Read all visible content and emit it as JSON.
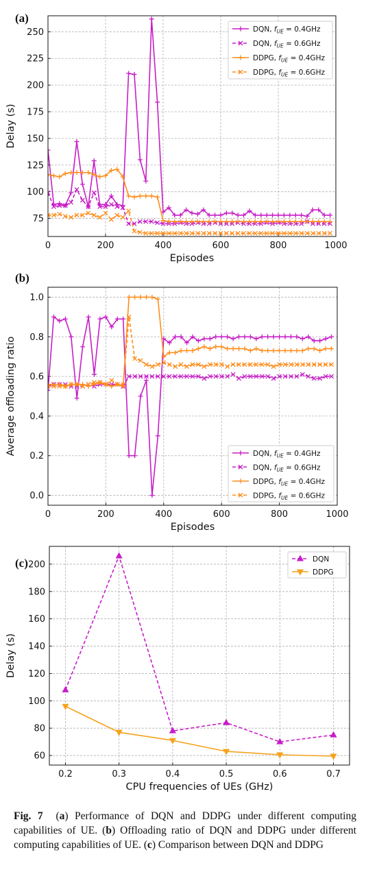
{
  "colors": {
    "magenta": "#c71dc7",
    "orange": "#ff8c1a",
    "orange_c": "#f5a21b",
    "grid": "#b0b0b0"
  },
  "chart_data": [
    {
      "panel_label": "(a)",
      "type": "line",
      "xlabel": "Episodes",
      "ylabel": "Delay (s)",
      "xlim": [
        0,
        1000
      ],
      "ylim": [
        58,
        265
      ],
      "xticks": [
        "0",
        "200",
        "400",
        "600",
        "800",
        "1000"
      ],
      "yticks": [
        "75",
        "100",
        "125",
        "150",
        "175",
        "200",
        "225",
        "250"
      ],
      "grid": true,
      "legend_position": "top-right",
      "series": [
        {
          "name": "DQN, f_UE = 0.4GHz",
          "color": "magenta",
          "style": "solid",
          "marker": "+",
          "x": [
            0,
            20,
            40,
            60,
            80,
            100,
            120,
            140,
            160,
            180,
            200,
            220,
            240,
            260,
            280,
            300,
            320,
            340,
            360,
            380,
            400,
            420,
            440,
            460,
            480,
            500,
            520,
            540,
            560,
            580,
            600,
            620,
            640,
            660,
            680,
            700,
            720,
            740,
            760,
            780,
            800,
            820,
            840,
            860,
            880,
            900,
            920,
            940,
            960,
            980
          ],
          "values": [
            139,
            88,
            89,
            87,
            99,
            147,
            107,
            86,
            129,
            88,
            88,
            96,
            88,
            87,
            211,
            210,
            130,
            110,
            262,
            184,
            81,
            85,
            78,
            78,
            83,
            80,
            79,
            83,
            78,
            78,
            78,
            80,
            80,
            78,
            78,
            82,
            78,
            78,
            78,
            78,
            78,
            78,
            78,
            78,
            78,
            77,
            83,
            83,
            78,
            78
          ]
        },
        {
          "name": "DQN, f_UE = 0.6GHz",
          "color": "magenta",
          "style": "dashed",
          "marker": "x",
          "x": [
            0,
            20,
            40,
            60,
            80,
            100,
            120,
            140,
            160,
            180,
            200,
            220,
            240,
            260,
            280,
            300,
            320,
            340,
            360,
            380,
            400,
            420,
            440,
            460,
            480,
            500,
            520,
            540,
            560,
            580,
            600,
            620,
            640,
            660,
            680,
            700,
            720,
            740,
            760,
            780,
            800,
            820,
            840,
            860,
            880,
            900,
            920,
            940,
            960,
            980
          ],
          "values": [
            99,
            86,
            87,
            87,
            90,
            102,
            92,
            86,
            99,
            86,
            86,
            88,
            86,
            85,
            70,
            70,
            72,
            72,
            72,
            71,
            70,
            70,
            70,
            71,
            70,
            70,
            71,
            70,
            70,
            71,
            70,
            70,
            70,
            71,
            70,
            70,
            70,
            70,
            71,
            70,
            71,
            70,
            70,
            70,
            70,
            72,
            70,
            70,
            70,
            70
          ]
        },
        {
          "name": "DDPG, f_UE = 0.4GHz",
          "color": "orange",
          "style": "solid",
          "marker": "+",
          "x": [
            0,
            20,
            40,
            60,
            80,
            100,
            120,
            140,
            160,
            180,
            200,
            220,
            240,
            260,
            280,
            300,
            320,
            340,
            360,
            380,
            400,
            420,
            440,
            460,
            480,
            500,
            520,
            540,
            560,
            580,
            600,
            620,
            640,
            660,
            680,
            700,
            720,
            740,
            760,
            780,
            800,
            820,
            840,
            860,
            880,
            900,
            920,
            940,
            960,
            980
          ],
          "values": [
            116,
            115,
            114,
            117,
            118,
            118,
            118,
            118,
            116,
            114,
            115,
            120,
            121,
            114,
            96,
            95,
            96,
            96,
            96,
            95,
            73,
            72,
            72,
            72,
            72,
            72,
            72,
            72,
            72,
            72,
            72,
            72,
            72,
            72,
            72,
            72,
            72,
            72,
            72,
            72,
            72,
            72,
            72,
            72,
            72,
            72,
            72,
            72,
            72,
            72
          ]
        },
        {
          "name": "DDPG, f_UE = 0.6GHz",
          "color": "orange",
          "style": "dashed",
          "marker": "x",
          "x": [
            0,
            20,
            40,
            60,
            80,
            100,
            120,
            140,
            160,
            180,
            200,
            220,
            240,
            260,
            280,
            300,
            320,
            340,
            360,
            380,
            400,
            420,
            440,
            460,
            480,
            500,
            520,
            540,
            560,
            580,
            600,
            620,
            640,
            660,
            680,
            700,
            720,
            740,
            760,
            780,
            800,
            820,
            840,
            860,
            880,
            900,
            920,
            940,
            960,
            980
          ],
          "values": [
            78,
            78,
            79,
            77,
            76,
            78,
            78,
            80,
            78,
            76,
            80,
            74,
            78,
            76,
            82,
            63,
            62,
            61,
            61,
            61,
            61,
            61,
            61,
            61,
            61,
            61,
            61,
            61,
            61,
            61,
            61,
            61,
            61,
            61,
            61,
            61,
            61,
            61,
            61,
            61,
            61,
            61,
            61,
            61,
            61,
            61,
            61,
            61,
            61,
            61
          ]
        }
      ]
    },
    {
      "panel_label": "(b)",
      "type": "line",
      "xlabel": "Episodes",
      "ylabel": "Average offloading ratio",
      "xlim": [
        0,
        1000
      ],
      "ylim": [
        -0.05,
        1.05
      ],
      "xticks": [
        "0",
        "200",
        "400",
        "600",
        "800",
        "1000"
      ],
      "yticks": [
        "0.0",
        "0.2",
        "0.4",
        "0.6",
        "0.8",
        "1.0"
      ],
      "grid": true,
      "legend_position": "bottom-right",
      "series": [
        {
          "name": "DQN, f_UE = 0.4GHz",
          "color": "magenta",
          "style": "solid",
          "marker": "+",
          "x": [
            0,
            20,
            40,
            60,
            80,
            100,
            120,
            140,
            160,
            180,
            200,
            220,
            240,
            260,
            280,
            300,
            320,
            340,
            360,
            380,
            400,
            420,
            440,
            460,
            480,
            500,
            520,
            540,
            560,
            580,
            600,
            620,
            640,
            660,
            680,
            700,
            720,
            740,
            760,
            780,
            800,
            820,
            840,
            860,
            880,
            900,
            920,
            940,
            960,
            980
          ],
          "values": [
            0.53,
            0.9,
            0.88,
            0.89,
            0.8,
            0.49,
            0.75,
            0.9,
            0.61,
            0.89,
            0.9,
            0.85,
            0.89,
            0.89,
            0.2,
            0.2,
            0.5,
            0.58,
            0.0,
            0.3,
            0.79,
            0.77,
            0.8,
            0.8,
            0.77,
            0.8,
            0.78,
            0.79,
            0.79,
            0.8,
            0.8,
            0.8,
            0.79,
            0.8,
            0.8,
            0.8,
            0.79,
            0.8,
            0.8,
            0.8,
            0.8,
            0.8,
            0.8,
            0.8,
            0.79,
            0.8,
            0.78,
            0.78,
            0.79,
            0.8
          ]
        },
        {
          "name": "DQN, f_UE = 0.6GHz",
          "color": "magenta",
          "style": "dashed",
          "marker": "x",
          "x": [
            0,
            20,
            40,
            60,
            80,
            100,
            120,
            140,
            160,
            180,
            200,
            220,
            240,
            260,
            280,
            300,
            320,
            340,
            360,
            380,
            400,
            420,
            440,
            460,
            480,
            500,
            520,
            540,
            560,
            580,
            600,
            620,
            640,
            660,
            680,
            700,
            720,
            740,
            760,
            780,
            800,
            820,
            840,
            860,
            880,
            900,
            920,
            940,
            960,
            980
          ],
          "values": [
            0.55,
            0.56,
            0.56,
            0.56,
            0.55,
            0.55,
            0.55,
            0.56,
            0.55,
            0.56,
            0.56,
            0.56,
            0.56,
            0.55,
            0.6,
            0.6,
            0.6,
            0.6,
            0.6,
            0.6,
            0.6,
            0.6,
            0.6,
            0.6,
            0.6,
            0.6,
            0.6,
            0.59,
            0.6,
            0.6,
            0.6,
            0.6,
            0.61,
            0.59,
            0.6,
            0.6,
            0.6,
            0.6,
            0.6,
            0.59,
            0.6,
            0.6,
            0.6,
            0.6,
            0.61,
            0.6,
            0.59,
            0.59,
            0.6,
            0.6
          ]
        },
        {
          "name": "DDPG, f_UE = 0.4GHz",
          "color": "orange",
          "style": "solid",
          "marker": "+",
          "x": [
            0,
            20,
            40,
            60,
            80,
            100,
            120,
            140,
            160,
            180,
            200,
            220,
            240,
            260,
            280,
            300,
            320,
            340,
            360,
            380,
            400,
            420,
            440,
            460,
            480,
            500,
            520,
            540,
            560,
            580,
            600,
            620,
            640,
            660,
            680,
            700,
            720,
            740,
            760,
            780,
            800,
            820,
            840,
            860,
            880,
            900,
            920,
            940,
            960,
            980
          ],
          "values": [
            0.56,
            0.56,
            0.56,
            0.55,
            0.56,
            0.56,
            0.56,
            0.55,
            0.56,
            0.57,
            0.56,
            0.55,
            0.56,
            0.55,
            1.0,
            1.0,
            1.0,
            1.0,
            1.0,
            0.99,
            0.7,
            0.72,
            0.72,
            0.73,
            0.73,
            0.73,
            0.74,
            0.75,
            0.74,
            0.75,
            0.75,
            0.74,
            0.74,
            0.74,
            0.74,
            0.73,
            0.74,
            0.73,
            0.73,
            0.73,
            0.73,
            0.73,
            0.73,
            0.73,
            0.73,
            0.74,
            0.74,
            0.73,
            0.74,
            0.74
          ]
        },
        {
          "name": "DDPG, f_UE = 0.6GHz",
          "color": "orange",
          "style": "dashed",
          "marker": "x",
          "x": [
            0,
            20,
            40,
            60,
            80,
            100,
            120,
            140,
            160,
            180,
            200,
            220,
            240,
            260,
            280,
            300,
            320,
            340,
            360,
            380,
            400,
            420,
            440,
            460,
            480,
            500,
            520,
            540,
            560,
            580,
            600,
            620,
            640,
            660,
            680,
            700,
            720,
            740,
            760,
            780,
            800,
            820,
            840,
            860,
            880,
            900,
            920,
            940,
            960,
            980
          ],
          "values": [
            0.55,
            0.55,
            0.55,
            0.55,
            0.56,
            0.56,
            0.55,
            0.56,
            0.57,
            0.57,
            0.56,
            0.58,
            0.56,
            0.56,
            0.9,
            0.69,
            0.68,
            0.66,
            0.65,
            0.66,
            0.67,
            0.66,
            0.65,
            0.66,
            0.65,
            0.66,
            0.66,
            0.65,
            0.66,
            0.66,
            0.66,
            0.65,
            0.66,
            0.66,
            0.66,
            0.66,
            0.66,
            0.66,
            0.66,
            0.65,
            0.66,
            0.66,
            0.66,
            0.66,
            0.66,
            0.66,
            0.66,
            0.66,
            0.66,
            0.66
          ]
        }
      ]
    },
    {
      "panel_label": "(c)",
      "type": "line",
      "xlabel": "CPU frequencies of UEs (GHz)",
      "ylabel": "Delay (s)",
      "xlim": [
        0.17,
        0.73
      ],
      "ylim": [
        53,
        213
      ],
      "xticks": [
        "0.2",
        "0.3",
        "0.4",
        "0.5",
        "0.6",
        "0.7"
      ],
      "yticks": [
        "60",
        "80",
        "100",
        "120",
        "140",
        "160",
        "180",
        "200"
      ],
      "grid": true,
      "legend_position": "top-right",
      "series": [
        {
          "name": "DQN",
          "color": "magenta",
          "style": "dashed",
          "marker": "triangle-up",
          "x": [
            0.2,
            0.3,
            0.4,
            0.5,
            0.6,
            0.7
          ],
          "values": [
            108,
            206,
            78,
            84,
            70,
            75
          ]
        },
        {
          "name": "DDPG",
          "color": "orange_c",
          "style": "solid",
          "marker": "triangle-down",
          "x": [
            0.2,
            0.3,
            0.4,
            0.5,
            0.6,
            0.7
          ],
          "values": [
            96,
            77,
            71,
            63,
            60.5,
            59.5
          ]
        }
      ]
    }
  ],
  "caption": {
    "fig_label": "Fig. 7",
    "part_a_label": "a",
    "part_a_text": ") Performance of DQN and DDPG under different computing capabilities of UE. (",
    "part_b_label": "b",
    "part_b_text": ") Offloading ratio of DQN and DDPG under different computing capabilities of UE. (",
    "part_c_label": "c",
    "part_c_text": ") Comparison between DQN and DDPG"
  }
}
